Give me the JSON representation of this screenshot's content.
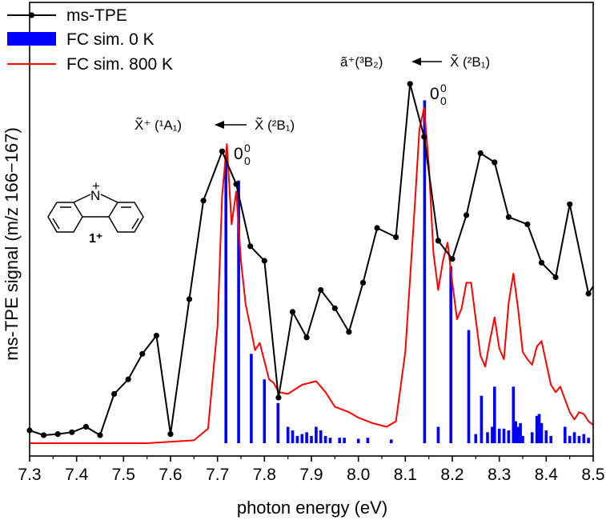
{
  "chart_data": {
    "type": "line",
    "xlabel": "photon energy (eV)",
    "ylabel": "ms-TPE signal (m/z 166−167)",
    "xlim": [
      7.3,
      8.5
    ],
    "ylim": [
      0,
      1.0
    ],
    "xticks": [
      "7.3",
      "7.4",
      "7.5",
      "7.6",
      "7.7",
      "7.8",
      "7.9",
      "8.0",
      "8.1",
      "8.2",
      "8.3",
      "8.4",
      "8.5"
    ],
    "legend": {
      "position": "top-left",
      "items": [
        {
          "label": "ms-TPE",
          "color": "#000000",
          "style": "line-marker"
        },
        {
          "label": "FC sim. 0 K",
          "color": "#0000ff",
          "style": "bar"
        },
        {
          "label": "FC sim. 800 K",
          "color": "#ff0000",
          "style": "line"
        }
      ]
    },
    "series": [
      {
        "name": "ms-TPE",
        "color": "#000000",
        "x": [
          7.3,
          7.33,
          7.36,
          7.39,
          7.42,
          7.45,
          7.48,
          7.51,
          7.54,
          7.57,
          7.6,
          7.64,
          7.67,
          7.71,
          7.74,
          7.77,
          7.8,
          7.83,
          7.86,
          7.89,
          7.92,
          7.95,
          7.98,
          8.01,
          8.04,
          8.08,
          8.11,
          8.14,
          8.17,
          8.2,
          8.23,
          8.26,
          8.29,
          8.32,
          8.36,
          8.39,
          8.42,
          8.45,
          8.49,
          8.5
        ],
        "y": [
          0.035,
          0.022,
          0.025,
          0.03,
          0.045,
          0.022,
          0.135,
          0.175,
          0.245,
          0.295,
          0.025,
          0.395,
          0.665,
          0.8,
          0.71,
          0.54,
          0.5,
          0.125,
          0.36,
          0.29,
          0.42,
          0.37,
          0.305,
          0.44,
          0.59,
          0.565,
          0.985,
          0.84,
          0.555,
          0.505,
          0.625,
          0.795,
          0.77,
          0.62,
          0.6,
          0.495,
          0.455,
          0.655,
          0.41,
          0.43
        ]
      },
      {
        "name": "FC sim. 800 K",
        "color": "#ff0000",
        "x": [
          7.3,
          7.55,
          7.65,
          7.68,
          7.7,
          7.71,
          7.72,
          7.73,
          7.74,
          7.75,
          7.76,
          7.77,
          7.78,
          7.79,
          7.8,
          7.81,
          7.82,
          7.83,
          7.85,
          7.88,
          7.91,
          7.93,
          7.95,
          7.98,
          8.0,
          8.03,
          8.06,
          8.08,
          8.1,
          8.12,
          8.13,
          8.14,
          8.15,
          8.16,
          8.17,
          8.18,
          8.19,
          8.2,
          8.21,
          8.22,
          8.23,
          8.24,
          8.25,
          8.26,
          8.27,
          8.28,
          8.29,
          8.3,
          8.31,
          8.32,
          8.33,
          8.34,
          8.35,
          8.36,
          8.37,
          8.38,
          8.39,
          8.4,
          8.41,
          8.42,
          8.43,
          8.44,
          8.45,
          8.46,
          8.47,
          8.48,
          8.49,
          8.5
        ],
        "y": [
          0.0,
          0.0,
          0.008,
          0.04,
          0.32,
          0.68,
          0.82,
          0.6,
          0.69,
          0.5,
          0.38,
          0.32,
          0.255,
          0.275,
          0.225,
          0.175,
          0.165,
          0.14,
          0.135,
          0.16,
          0.17,
          0.14,
          0.1,
          0.085,
          0.07,
          0.055,
          0.045,
          0.06,
          0.25,
          0.65,
          0.86,
          0.92,
          0.76,
          0.52,
          0.42,
          0.5,
          0.55,
          0.44,
          0.34,
          0.37,
          0.44,
          0.44,
          0.34,
          0.24,
          0.21,
          0.28,
          0.345,
          0.26,
          0.23,
          0.385,
          0.465,
          0.37,
          0.25,
          0.23,
          0.215,
          0.265,
          0.28,
          0.22,
          0.16,
          0.14,
          0.155,
          0.12,
          0.085,
          0.065,
          0.085,
          0.08,
          0.06,
          0.05
        ]
      }
    ],
    "sticks": {
      "name": "FC sim. 0 K",
      "color": "#0000ff",
      "x": [
        7.718,
        7.745,
        7.772,
        7.8,
        7.829,
        7.85,
        7.86,
        7.87,
        7.88,
        7.89,
        7.9,
        7.91,
        7.92,
        7.93,
        7.94,
        7.96,
        7.97,
        8.0,
        8.02,
        8.07,
        8.141,
        8.17,
        8.197,
        8.235,
        8.25,
        8.262,
        8.275,
        8.285,
        8.29,
        8.3,
        8.31,
        8.32,
        8.33,
        8.335,
        8.34,
        8.345,
        8.35,
        8.37,
        8.38,
        8.385,
        8.39,
        8.4,
        8.41,
        8.44,
        8.45,
        8.46,
        8.47,
        8.48,
        8.49
      ],
      "y": [
        0.79,
        0.72,
        0.245,
        0.175,
        0.11,
        0.045,
        0.035,
        0.02,
        0.025,
        0.03,
        0.02,
        0.045,
        0.035,
        0.02,
        0.015,
        0.015,
        0.015,
        0.012,
        0.015,
        0.01,
        0.94,
        0.045,
        0.485,
        0.31,
        0.025,
        0.13,
        0.03,
        0.045,
        0.155,
        0.04,
        0.04,
        0.035,
        0.155,
        0.06,
        0.045,
        0.055,
        0.02,
        0.03,
        0.075,
        0.08,
        0.055,
        0.035,
        0.02,
        0.045,
        0.02,
        0.03,
        0.02,
        0.025,
        0.015
      ]
    },
    "annotations": [
      {
        "text_left": "X̃⁺ (¹A₁)",
        "text_right": "X̃ (²B₁)",
        "arrow": "left"
      },
      {
        "text_left": "ã⁺(³B₂)",
        "text_right": "X̃ (²B₁)",
        "arrow": "left"
      },
      {
        "peak_label": "0",
        "sub": "0",
        "sup": "0"
      },
      {
        "peak_label": "0",
        "sub": "0",
        "sup": "0"
      }
    ],
    "structure_label": "1⁺",
    "structure_atom": "N",
    "structure_charge": "+"
  }
}
